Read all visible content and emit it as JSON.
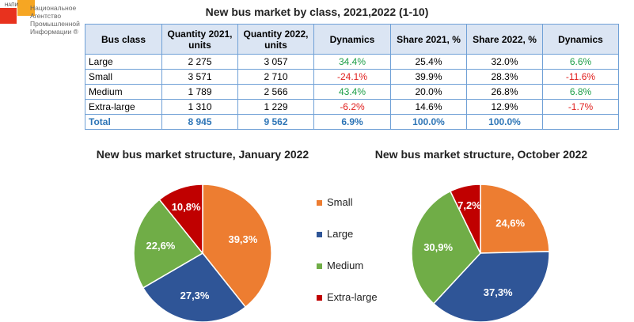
{
  "logo": {
    "small": "НАПИ",
    "text": "Национальное Агентство Промышленной Информации ®"
  },
  "title": "New bus market by class, 2021,2022 (1-10)",
  "table": {
    "headers": [
      "Bus class",
      "Quantity 2021, units",
      "Quantity 2022, units",
      "Dynamics",
      "Share 2021, %",
      "Share 2022, %",
      "Dynamics"
    ],
    "rows": [
      [
        "Large",
        "2 275",
        "3 057",
        "34.4%",
        "25.4%",
        "32.0%",
        "6.6%"
      ],
      [
        "Small",
        "3 571",
        "2 710",
        "-24.1%",
        "39.9%",
        "28.3%",
        "-11.6%"
      ],
      [
        "Medium",
        "1 789",
        "2 566",
        "43.4%",
        "20.0%",
        "26.8%",
        "6.8%"
      ],
      [
        "Extra-large",
        "1 310",
        "1 229",
        "-6.2%",
        "14.6%",
        "12.9%",
        "-1.7%"
      ]
    ],
    "total": [
      "Total",
      "8 945",
      "9 562",
      "6.9%",
      "100.0%",
      "100.0%",
      ""
    ]
  },
  "colors": {
    "Small": "#ed7d31",
    "Large": "#2f5597",
    "Medium": "#70ad47",
    "Extra-large": "#c00000"
  },
  "legend": [
    "Small",
    "Large",
    "Medium",
    "Extra-large"
  ],
  "chart_data": [
    {
      "type": "pie",
      "title": "New bus market structure, January 2022",
      "categories": [
        "Small",
        "Large",
        "Medium",
        "Extra-large"
      ],
      "values": [
        39.3,
        27.3,
        22.6,
        10.8
      ],
      "labels": [
        "39,3%",
        "27,3%",
        "22,6%",
        "10,8%"
      ]
    },
    {
      "type": "pie",
      "title": "New bus market structure, October 2022",
      "categories": [
        "Small",
        "Large",
        "Medium",
        "Extra-large"
      ],
      "values": [
        24.6,
        37.3,
        30.9,
        7.2
      ],
      "labels": [
        "24,6%",
        "37,3%",
        "30,9%",
        "7,2%"
      ]
    }
  ]
}
